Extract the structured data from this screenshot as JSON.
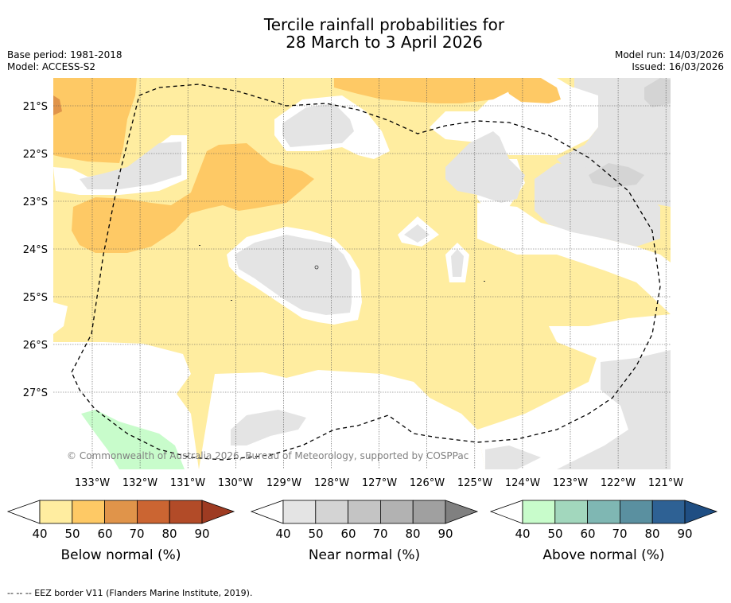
{
  "title_line1": "Tercile rainfall probabilities for",
  "title_line2": "28 March to 3 April 2026",
  "base_period": "Base period: 1981-2018",
  "model": "Model: ACCESS-S2",
  "model_run": "Model run: 14/03/2026",
  "issued": "Issued: 16/03/2026",
  "copyright": "© Commonwealth of Australia 2026, Bureau of Meteorology, supported by COSPPac",
  "lon_labels": [
    "133°W",
    "132°W",
    "131°W",
    "130°W",
    "129°W",
    "128°W",
    "127°W",
    "126°W",
    "125°W",
    "124°W",
    "123°W",
    "122°W",
    "121°W"
  ],
  "lat_labels": [
    "21°S",
    "22°S",
    "23°S",
    "24°S",
    "25°S",
    "26°S",
    "27°S"
  ],
  "colorbars": [
    {
      "title": "Below normal (%)",
      "ticks": [
        "40",
        "50",
        "60",
        "70",
        "80",
        "90"
      ],
      "colors": [
        "#ffeda0",
        "#fec965",
        "#e0944a",
        "#cb6532",
        "#b24b28"
      ],
      "extend_color": "#9e3b22"
    },
    {
      "title": "Near normal (%)",
      "ticks": [
        "40",
        "50",
        "60",
        "70",
        "80",
        "90"
      ],
      "colors": [
        "#e4e4e4",
        "#d4d4d4",
        "#c4c4c4",
        "#b2b2b2",
        "#a0a0a0"
      ],
      "extend_color": "#808080"
    },
    {
      "title": "Above normal (%)",
      "ticks": [
        "40",
        "50",
        "60",
        "70",
        "80",
        "90"
      ],
      "colors": [
        "#c8fccb",
        "#a2d7bd",
        "#7fb7b3",
        "#5a90a0",
        "#2e6194"
      ],
      "extend_color": "#1f4e83"
    }
  ],
  "footer": "-- -- -- EEZ border V11 (Flanders Marine Institute, 2019)."
}
